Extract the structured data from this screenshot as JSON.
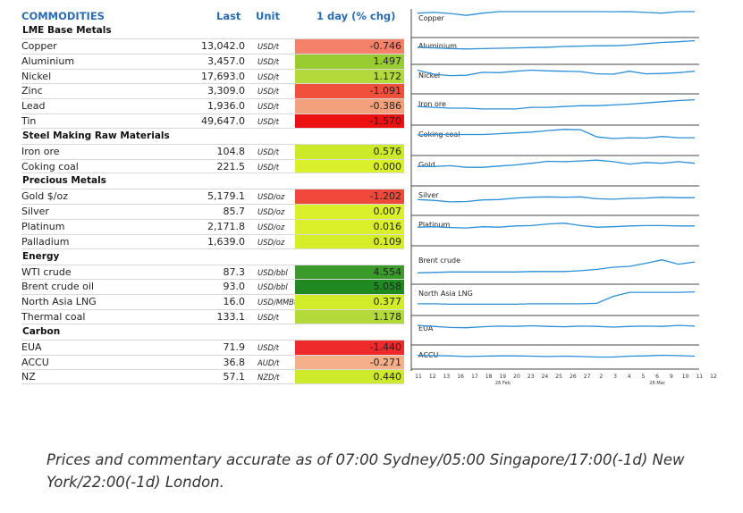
{
  "header": {
    "name": "COMMODITIES",
    "last": "Last",
    "unit": "Unit",
    "chg": "1 day (% chg)"
  },
  "groups": [
    {
      "title": "LME Base Metals",
      "rows": [
        {
          "name": "Copper",
          "last": "13,042.0",
          "unit": "USD/t",
          "chg": "-0.746",
          "color": "#f4826a"
        },
        {
          "name": "Aluminium",
          "last": "3,457.0",
          "unit": "USD/t",
          "chg": "1.497",
          "color": "#99cc33"
        },
        {
          "name": "Nickel",
          "last": "17,693.0",
          "unit": "USD/t",
          "chg": "1.172",
          "color": "#b3d93a"
        },
        {
          "name": "Zinc",
          "last": "3,309.0",
          "unit": "USD/t",
          "chg": "-1.091",
          "color": "#f0503c"
        },
        {
          "name": "Lead",
          "last": "1,936.0",
          "unit": "USD/t",
          "chg": "-0.386",
          "color": "#f5a07c"
        },
        {
          "name": "Tin",
          "last": "49,647.0",
          "unit": "USD/t",
          "chg": "-1.570",
          "color": "#ee1111"
        }
      ]
    },
    {
      "title": "Steel Making Raw Materials",
      "rows": [
        {
          "name": "Iron ore",
          "last": "104.8",
          "unit": "USD/t",
          "chg": "0.576",
          "color": "#ccea2a"
        },
        {
          "name": "Coking coal",
          "last": "221.5",
          "unit": "USD/t",
          "chg": "0.000",
          "color": "#d9f02a"
        }
      ]
    },
    {
      "title": "Precious Metals",
      "rows": [
        {
          "name": "Gold $/oz",
          "last": "5,179.1",
          "unit": "USD/oz",
          "chg": "-1.202",
          "color": "#f0483a"
        },
        {
          "name": "Silver",
          "last": "85.7",
          "unit": "USD/oz",
          "chg": "0.007",
          "color": "#d9f02a"
        },
        {
          "name": "Platinum",
          "last": "2,171.8",
          "unit": "USD/oz",
          "chg": "0.016",
          "color": "#d9f02a"
        },
        {
          "name": "Palladium",
          "last": "1,639.0",
          "unit": "USD/oz",
          "chg": "0.109",
          "color": "#d6ee2a"
        }
      ]
    },
    {
      "title": "Energy",
      "rows": [
        {
          "name": "WTI crude",
          "last": "87.3",
          "unit": "USD/bbl",
          "chg": "4.554",
          "color": "#3a9a2a"
        },
        {
          "name": "Brent crude oil",
          "last": "93.0",
          "unit": "USD/bbl",
          "chg": "5.058",
          "color": "#1f8a1f"
        },
        {
          "name": "North Asia LNG",
          "last": "16.0",
          "unit": "USD/MMBtu",
          "chg": "0.377",
          "color": "#d2ec2a"
        },
        {
          "name": "Thermal coal",
          "last": "133.1",
          "unit": "USD/t",
          "chg": "1.178",
          "color": "#b3d93a"
        }
      ]
    },
    {
      "title": "Carbon",
      "rows": [
        {
          "name": "EUA",
          "last": "71.9",
          "unit": "USD/t",
          "chg": "-1.440",
          "color": "#ee2a2a"
        },
        {
          "name": "ACCU",
          "last": "36.8",
          "unit": "AUD/t",
          "chg": "-0.271",
          "color": "#f5b08a"
        },
        {
          "name": "NZ",
          "last": "57.1",
          "unit": "NZD/t",
          "chg": "0.440",
          "color": "#cfea2a"
        }
      ]
    }
  ],
  "sparklines": [
    {
      "label": "Copper",
      "values": [
        58,
        60,
        57,
        52,
        58,
        70,
        65,
        72,
        80,
        79,
        80,
        68,
        62,
        67,
        60,
        58,
        70,
        66
      ]
    },
    {
      "label": "Aluminium",
      "values": [
        40,
        38,
        36,
        35,
        36,
        37,
        38,
        39,
        40,
        42,
        43,
        44,
        44,
        46,
        50,
        53,
        55,
        58
      ]
    },
    {
      "label": "Nickel",
      "values": [
        58,
        47,
        43,
        44,
        52,
        51,
        55,
        58,
        56,
        55,
        54,
        48,
        47,
        55,
        48,
        49,
        51,
        55
      ]
    },
    {
      "label": "Iron ore",
      "values": [
        40,
        38,
        36,
        36,
        34,
        34,
        34,
        38,
        38,
        40,
        42,
        42,
        44,
        46,
        49,
        52,
        55,
        57
      ]
    },
    {
      "label": "Coking coal",
      "values": [
        45,
        46,
        46,
        46,
        46,
        48,
        50,
        52,
        56,
        59,
        58,
        40,
        36,
        38,
        37,
        41,
        38,
        38
      ]
    },
    {
      "label": "Gold",
      "values": [
        42,
        42,
        44,
        40,
        40,
        43,
        46,
        50,
        55,
        54,
        56,
        58,
        54,
        48,
        52,
        50,
        54,
        50
      ]
    },
    {
      "label": "Silver",
      "values": [
        34,
        32,
        28,
        29,
        33,
        34,
        38,
        40,
        41,
        40,
        41,
        36,
        35,
        37,
        38,
        40,
        39,
        39
      ]
    },
    {
      "label": "Platinum",
      "values": [
        40,
        41,
        39,
        38,
        41,
        40,
        43,
        44,
        48,
        50,
        44,
        40,
        41,
        43,
        44,
        44,
        43,
        43
      ]
    },
    {
      "label": "Brent crude",
      "values": [
        20,
        21,
        22,
        22,
        22,
        22,
        22,
        23,
        23,
        23,
        25,
        28,
        33,
        35,
        42,
        50,
        40,
        45
      ]
    },
    {
      "label": "North Asia LNG",
      "values": [
        22,
        22,
        21,
        21,
        21,
        21,
        21,
        22,
        22,
        22,
        22,
        23,
        40,
        50,
        50,
        50,
        50,
        51
      ]
    },
    {
      "label": "EUA",
      "values": [
        50,
        47,
        44,
        43,
        46,
        48,
        47,
        49,
        47,
        46,
        48,
        47,
        45,
        47,
        48,
        47,
        50,
        48
      ]
    },
    {
      "label": "ACCU",
      "values": [
        37,
        36,
        35,
        33,
        34,
        35,
        35,
        34,
        33,
        34,
        33,
        31,
        31,
        34,
        35,
        37,
        36,
        34
      ]
    }
  ],
  "x_axis": {
    "ticks": [
      "11",
      "12",
      "13",
      "16",
      "17",
      "18",
      "19",
      "20",
      "23",
      "24",
      "25",
      "26",
      "27",
      "2",
      "3",
      "4",
      "5",
      "6",
      "9",
      "10",
      "11",
      "12"
    ],
    "month_labels": [
      {
        "text": "26 Feb",
        "at": 6
      },
      {
        "text": "26 Mar",
        "at": 17
      }
    ]
  },
  "footnote": "Prices and commentary accurate as of 07:00 Sydney/05:00 Singapore/17:00(-1d) New York/22:00(-1d) London."
}
